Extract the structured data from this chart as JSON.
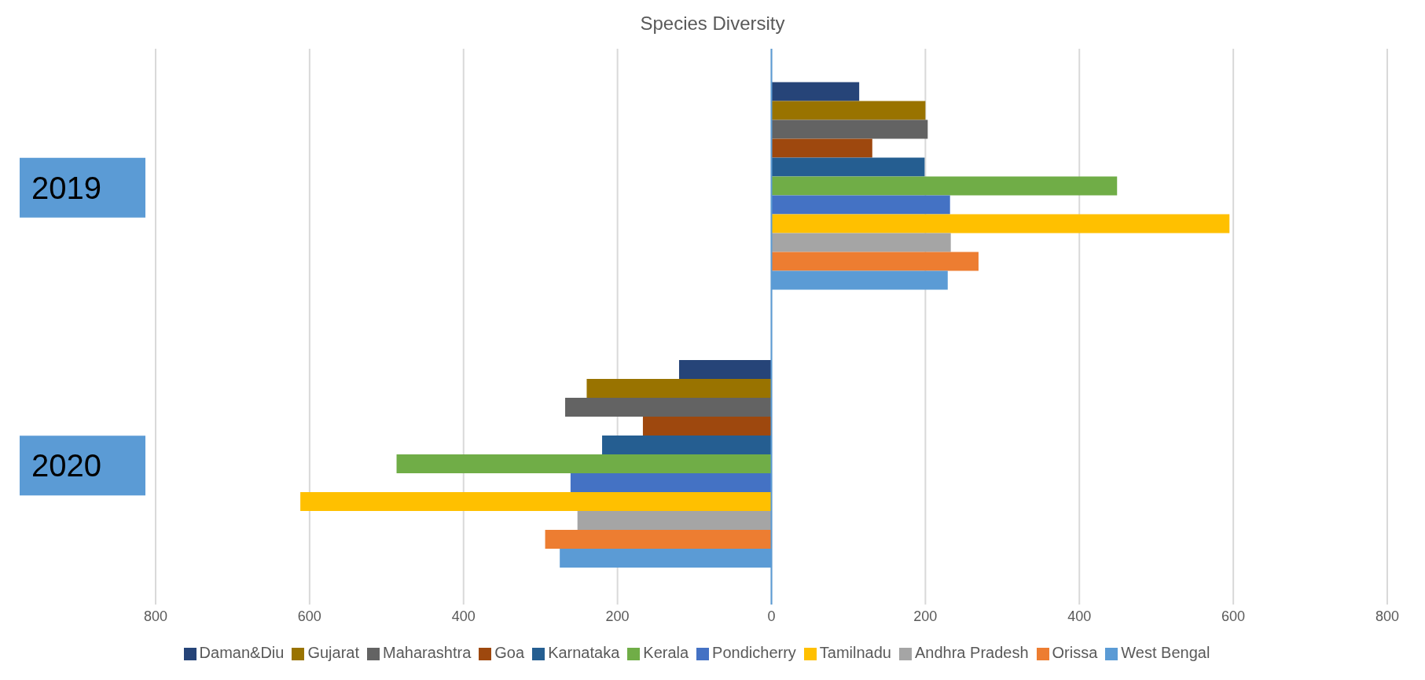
{
  "chart_data": {
    "type": "bar",
    "orientation": "horizontal",
    "title": "Species Diversity",
    "categories": [
      "2019",
      "2020"
    ],
    "series": [
      {
        "name": "Daman&Diu",
        "color": "#264478",
        "values": [
          114,
          -120
        ]
      },
      {
        "name": "Gujarat",
        "color": "#997300",
        "values": [
          200,
          -240
        ]
      },
      {
        "name": "Maharashtra",
        "color": "#636363",
        "values": [
          203,
          -268
        ]
      },
      {
        "name": "Goa",
        "color": "#9e480e",
        "values": [
          131,
          -167
        ]
      },
      {
        "name": "Karnataka",
        "color": "#255e91",
        "values": [
          199,
          -220
        ]
      },
      {
        "name": "Kerala",
        "color": "#70ad47",
        "values": [
          449,
          -487
        ]
      },
      {
        "name": "Pondicherry",
        "color": "#4472c4",
        "values": [
          232,
          -261
        ]
      },
      {
        "name": "Tamilnadu",
        "color": "#ffc000",
        "values": [
          595,
          -612
        ]
      },
      {
        "name": "Andhra Pradesh",
        "color": "#a5a5a5",
        "values": [
          233,
          -252
        ]
      },
      {
        "name": "Orissa",
        "color": "#ed7d31",
        "values": [
          269,
          -294
        ]
      },
      {
        "name": "West Bengal",
        "color": "#5b9bd5",
        "values": [
          229,
          -275
        ]
      }
    ],
    "xlim": [
      -800,
      800
    ],
    "xticks": [
      {
        "value": -800,
        "label": "800"
      },
      {
        "value": -600,
        "label": "600"
      },
      {
        "value": -400,
        "label": "400"
      },
      {
        "value": -200,
        "label": "200"
      },
      0,
      200,
      400,
      600,
      800
    ],
    "ref_lines": [
      {
        "axis": "x",
        "value": 0,
        "color": "#5b9bd5"
      }
    ],
    "grid": "x",
    "legend": "bottom"
  }
}
